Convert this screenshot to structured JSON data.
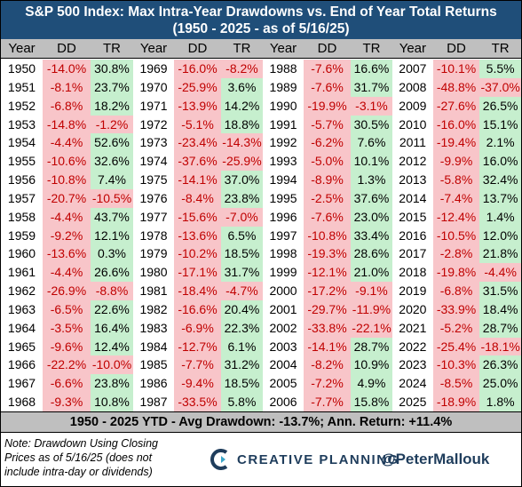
{
  "title_line1": "S&P 500 Index: Max Intra-Year Drawdowns vs. End of Year Total Returns",
  "title_line2": "(1950 - 2025 - as of 5/16/25)",
  "headers": {
    "year": "Year",
    "dd": "DD",
    "tr": "TR"
  },
  "columns": [
    [
      [
        "1950",
        "-14.0%",
        "30.8%"
      ],
      [
        "1951",
        "-8.1%",
        "23.7%"
      ],
      [
        "1952",
        "-6.8%",
        "18.2%"
      ],
      [
        "1953",
        "-14.8%",
        "-1.2%"
      ],
      [
        "1954",
        "-4.4%",
        "52.6%"
      ],
      [
        "1955",
        "-10.6%",
        "32.6%"
      ],
      [
        "1956",
        "-10.8%",
        "7.4%"
      ],
      [
        "1957",
        "-20.7%",
        "-10.5%"
      ],
      [
        "1958",
        "-4.4%",
        "43.7%"
      ],
      [
        "1959",
        "-9.2%",
        "12.1%"
      ],
      [
        "1960",
        "-13.6%",
        "0.3%"
      ],
      [
        "1961",
        "-4.4%",
        "26.6%"
      ],
      [
        "1962",
        "-26.9%",
        "-8.8%"
      ],
      [
        "1963",
        "-6.5%",
        "22.6%"
      ],
      [
        "1964",
        "-3.5%",
        "16.4%"
      ],
      [
        "1965",
        "-9.6%",
        "12.4%"
      ],
      [
        "1966",
        "-22.2%",
        "-10.0%"
      ],
      [
        "1967",
        "-6.6%",
        "23.8%"
      ],
      [
        "1968",
        "-9.3%",
        "10.8%"
      ]
    ],
    [
      [
        "1969",
        "-16.0%",
        "-8.2%"
      ],
      [
        "1970",
        "-25.9%",
        "3.6%"
      ],
      [
        "1971",
        "-13.9%",
        "14.2%"
      ],
      [
        "1972",
        "-5.1%",
        "18.8%"
      ],
      [
        "1973",
        "-23.4%",
        "-14.3%"
      ],
      [
        "1974",
        "-37.6%",
        "-25.9%"
      ],
      [
        "1975",
        "-14.1%",
        "37.0%"
      ],
      [
        "1976",
        "-8.4%",
        "23.8%"
      ],
      [
        "1977",
        "-15.6%",
        "-7.0%"
      ],
      [
        "1978",
        "-13.6%",
        "6.5%"
      ],
      [
        "1979",
        "-10.2%",
        "18.5%"
      ],
      [
        "1980",
        "-17.1%",
        "31.7%"
      ],
      [
        "1981",
        "-18.4%",
        "-4.7%"
      ],
      [
        "1982",
        "-16.6%",
        "20.4%"
      ],
      [
        "1983",
        "-6.9%",
        "22.3%"
      ],
      [
        "1984",
        "-12.7%",
        "6.1%"
      ],
      [
        "1985",
        "-7.7%",
        "31.2%"
      ],
      [
        "1986",
        "-9.4%",
        "18.5%"
      ],
      [
        "1987",
        "-33.5%",
        "5.8%"
      ]
    ],
    [
      [
        "1988",
        "-7.6%",
        "16.6%"
      ],
      [
        "1989",
        "-7.6%",
        "31.7%"
      ],
      [
        "1990",
        "-19.9%",
        "-3.1%"
      ],
      [
        "1991",
        "-5.7%",
        "30.5%"
      ],
      [
        "1992",
        "-6.2%",
        "7.6%"
      ],
      [
        "1993",
        "-5.0%",
        "10.1%"
      ],
      [
        "1994",
        "-8.9%",
        "1.3%"
      ],
      [
        "1995",
        "-2.5%",
        "37.6%"
      ],
      [
        "1996",
        "-7.6%",
        "23.0%"
      ],
      [
        "1997",
        "-10.8%",
        "33.4%"
      ],
      [
        "1998",
        "-19.3%",
        "28.6%"
      ],
      [
        "1999",
        "-12.1%",
        "21.0%"
      ],
      [
        "2000",
        "-17.2%",
        "-9.1%"
      ],
      [
        "2001",
        "-29.7%",
        "-11.9%"
      ],
      [
        "2002",
        "-33.8%",
        "-22.1%"
      ],
      [
        "2003",
        "-14.1%",
        "28.7%"
      ],
      [
        "2004",
        "-8.2%",
        "10.9%"
      ],
      [
        "2005",
        "-7.2%",
        "4.9%"
      ],
      [
        "2006",
        "-7.7%",
        "15.8%"
      ]
    ],
    [
      [
        "2007",
        "-10.1%",
        "5.5%"
      ],
      [
        "2008",
        "-48.8%",
        "-37.0%"
      ],
      [
        "2009",
        "-27.6%",
        "26.5%"
      ],
      [
        "2010",
        "-16.0%",
        "15.1%"
      ],
      [
        "2011",
        "-19.4%",
        "2.1%"
      ],
      [
        "2012",
        "-9.9%",
        "16.0%"
      ],
      [
        "2013",
        "-5.8%",
        "32.4%"
      ],
      [
        "2014",
        "-7.4%",
        "13.7%"
      ],
      [
        "2015",
        "-12.4%",
        "1.4%"
      ],
      [
        "2016",
        "-10.5%",
        "12.0%"
      ],
      [
        "2017",
        "-2.8%",
        "21.8%"
      ],
      [
        "2018",
        "-19.8%",
        "-4.4%"
      ],
      [
        "2019",
        "-6.8%",
        "31.5%"
      ],
      [
        "2020",
        "-33.9%",
        "18.4%"
      ],
      [
        "2021",
        "-5.2%",
        "28.7%"
      ],
      [
        "2022",
        "-25.4%",
        "-18.1%"
      ],
      [
        "2023",
        "-10.3%",
        "26.3%"
      ],
      [
        "2024",
        "-8.5%",
        "25.0%"
      ],
      [
        "2025",
        "-18.9%",
        "1.8%"
      ]
    ]
  ],
  "summary": "1950 - 2025 YTD - Avg Drawdown: -13.7%; Ann. Return: +11.4%",
  "note": "Note: Drawdown Using Closing Prices as of 5/16/25 (does not include intra-day or dividends)",
  "brand": "CREATIVE PLANNING",
  "brand_icon": "creative-planning-logo",
  "handle": "@PeterMallouk",
  "colors": {
    "title_bg": "#1f4e79",
    "header_bg": "#bfbfbf",
    "negative_bg": "#f8c5c9",
    "positive_bg": "#c6efce",
    "negative_tr_text": "#c00000",
    "brand": "#1f3d5c"
  }
}
